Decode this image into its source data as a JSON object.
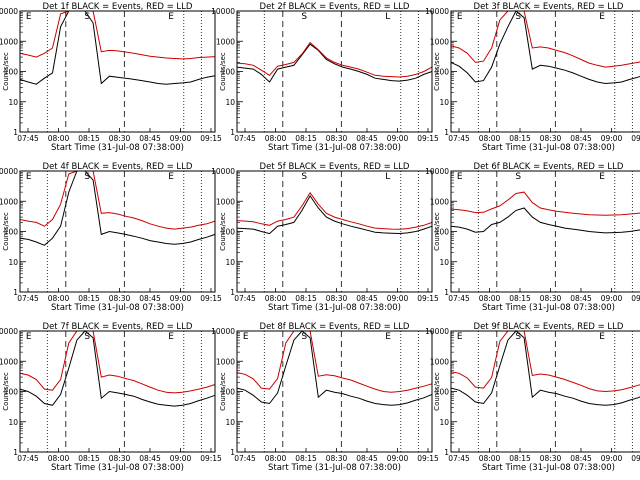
{
  "chart_data": [
    {
      "type": "line",
      "title": "Det 1f BLACK = Events, RED = LLD",
      "xlabel": "Start Time (31-Jul-08 07:38:00)",
      "ylabel": "Counts/sec",
      "x_ticks": [
        "07:45",
        "08:00",
        "08:15",
        "08:30",
        "08:45",
        "09:00",
        "09:15"
      ],
      "y_ticks": [
        "1",
        "10",
        "100",
        "1000",
        "10000"
      ],
      "ylim": [
        1,
        10000
      ],
      "y_scale": "log",
      "markers": [
        "E",
        "S",
        "E"
      ],
      "series": [
        {
          "color": "#000000",
          "values": [
            55,
            45,
            38,
            60,
            90,
            3000,
            10000,
            10000,
            10000,
            4000,
            40,
            70,
            65,
            60,
            55,
            50,
            45,
            40,
            38,
            40,
            42,
            45,
            55,
            65,
            72
          ]
        },
        {
          "color": "#cc0000",
          "values": [
            400,
            350,
            300,
            400,
            600,
            8000,
            10000,
            10000,
            10000,
            10000,
            450,
            500,
            480,
            440,
            400,
            360,
            320,
            300,
            280,
            270,
            260,
            270,
            290,
            300,
            310
          ]
        }
      ]
    },
    {
      "type": "line",
      "title": "Det 2f BLACK = Events, RED = LLD",
      "xlabel": "Start Time (31-Jul-08 07:38:00)",
      "ylabel": "Counts/sec",
      "x_ticks": [
        "07:45",
        "08:00",
        "08:15",
        "08:30",
        "08:45",
        "09:00",
        "09:15"
      ],
      "y_ticks": [
        "1",
        "10",
        "100",
        "1000",
        "10000"
      ],
      "ylim": [
        1,
        10000
      ],
      "y_scale": "log",
      "markers": [
        "S",
        "L"
      ],
      "series": [
        {
          "color": "#000000",
          "values": [
            140,
            130,
            120,
            80,
            45,
            120,
            140,
            160,
            350,
            800,
            500,
            250,
            180,
            140,
            120,
            100,
            80,
            60,
            55,
            50,
            48,
            52,
            60,
            80,
            100
          ]
        },
        {
          "color": "#cc0000",
          "values": [
            190,
            180,
            160,
            110,
            75,
            150,
            170,
            200,
            380,
            900,
            520,
            280,
            200,
            160,
            140,
            120,
            95,
            75,
            70,
            68,
            66,
            70,
            80,
            100,
            140
          ]
        }
      ]
    },
    {
      "type": "line",
      "title": "Det 3f BLACK = Events, RED = LLD",
      "xlabel": "Start Time (31-Jul-08 07:38:00)",
      "ylabel": "Counts/sec",
      "x_ticks": [
        "07:45",
        "08:00",
        "08:15",
        "08:30",
        "08:45",
        "09:00",
        "09:15"
      ],
      "y_ticks": [
        "1",
        "10",
        "100",
        "1000",
        "10000"
      ],
      "ylim": [
        1,
        10000
      ],
      "y_scale": "log",
      "markers": [
        "E",
        "S",
        "E"
      ],
      "series": [
        {
          "color": "#000000",
          "values": [
            200,
            150,
            90,
            45,
            50,
            140,
            800,
            3000,
            10000,
            6000,
            120,
            160,
            150,
            130,
            110,
            90,
            70,
            55,
            45,
            40,
            42,
            45,
            55,
            65,
            80
          ]
        },
        {
          "color": "#cc0000",
          "values": [
            700,
            600,
            400,
            200,
            220,
            600,
            5000,
            10000,
            10000,
            10000,
            600,
            650,
            600,
            500,
            420,
            330,
            250,
            190,
            160,
            140,
            150,
            160,
            180,
            200,
            230
          ]
        }
      ]
    },
    {
      "type": "line",
      "title": "Det 4f BLACK = Events, RED = LLD",
      "xlabel": "Start Time (31-Jul-08 07:38:00)",
      "ylabel": "Counts/sec",
      "x_ticks": [
        "07:45",
        "08:00",
        "08:15",
        "08:30",
        "08:45",
        "09:00",
        "09:15"
      ],
      "y_ticks": [
        "1",
        "10",
        "100",
        "1000",
        "10000"
      ],
      "ylim": [
        1,
        10000
      ],
      "y_scale": "log",
      "markers": [
        "E",
        "S",
        "E"
      ],
      "series": [
        {
          "color": "#000000",
          "values": [
            60,
            55,
            45,
            35,
            60,
            150,
            2000,
            10000,
            10000,
            5000,
            80,
            100,
            90,
            80,
            70,
            60,
            50,
            45,
            40,
            38,
            40,
            45,
            55,
            65,
            80
          ]
        },
        {
          "color": "#cc0000",
          "values": [
            250,
            220,
            200,
            150,
            250,
            800,
            8000,
            10000,
            10000,
            10000,
            400,
            420,
            380,
            320,
            280,
            230,
            180,
            150,
            130,
            120,
            130,
            140,
            160,
            180,
            220
          ]
        }
      ]
    },
    {
      "type": "line",
      "title": "Det 5f BLACK = Events, RED = LLD",
      "xlabel": "Start Time (31-Jul-08 07:38:00)",
      "ylabel": "Counts/sec",
      "x_ticks": [
        "07:45",
        "08:00",
        "08:15",
        "08:30",
        "08:45",
        "09:00",
        "09:15"
      ],
      "y_ticks": [
        "1",
        "10",
        "100",
        "1000",
        "10000"
      ],
      "ylim": [
        1,
        10000
      ],
      "y_scale": "log",
      "markers": [
        "S",
        "L"
      ],
      "series": [
        {
          "color": "#000000",
          "values": [
            130,
            125,
            120,
            100,
            85,
            150,
            170,
            200,
            500,
            1500,
            600,
            300,
            220,
            180,
            150,
            130,
            110,
            95,
            90,
            88,
            86,
            90,
            100,
            120,
            150
          ]
        },
        {
          "color": "#cc0000",
          "values": [
            230,
            220,
            210,
            180,
            160,
            220,
            250,
            300,
            700,
            1900,
            800,
            400,
            300,
            250,
            210,
            180,
            150,
            130,
            125,
            120,
            118,
            125,
            140,
            160,
            200
          ]
        }
      ]
    },
    {
      "type": "line",
      "title": "Det 6f BLACK = Events, RED = LLD",
      "xlabel": "Start Time (31-Jul-08 07:38:00)",
      "ylabel": "Counts/sec",
      "x_ticks": [
        "07:45",
        "08:00",
        "08:15",
        "08:30",
        "08:45",
        "09:00",
        "09:15"
      ],
      "y_ticks": [
        "1",
        "10",
        "100",
        "1000",
        "10000"
      ],
      "ylim": [
        1,
        10000
      ],
      "y_scale": "log",
      "markers": [
        "E",
        "S",
        "E"
      ],
      "series": [
        {
          "color": "#000000",
          "values": [
            150,
            140,
            120,
            95,
            100,
            170,
            200,
            300,
            500,
            600,
            300,
            200,
            170,
            150,
            130,
            120,
            110,
            100,
            95,
            90,
            92,
            95,
            100,
            110,
            120
          ]
        },
        {
          "color": "#cc0000",
          "values": [
            550,
            520,
            480,
            420,
            430,
            560,
            700,
            1100,
            1800,
            2000,
            900,
            600,
            520,
            470,
            430,
            400,
            380,
            360,
            350,
            345,
            350,
            360,
            380,
            400,
            420
          ]
        }
      ]
    },
    {
      "type": "line",
      "title": "Det 7f BLACK = Events, RED = LLD",
      "xlabel": "Start Time (31-Jul-08 07:38:00)",
      "ylabel": "Counts/sec",
      "x_ticks": [
        "07:45",
        "08:00",
        "08:15",
        "08:30",
        "08:45",
        "09:00",
        "09:15"
      ],
      "y_ticks": [
        "1",
        "10",
        "100",
        "1000",
        "10000"
      ],
      "ylim": [
        1,
        10000
      ],
      "y_scale": "log",
      "markers": [
        "E",
        "S",
        "E"
      ],
      "series": [
        {
          "color": "#000000",
          "values": [
            120,
            100,
            70,
            40,
            35,
            80,
            600,
            5000,
            10000,
            6000,
            60,
            100,
            90,
            80,
            70,
            55,
            45,
            38,
            35,
            33,
            35,
            40,
            50,
            60,
            75
          ]
        },
        {
          "color": "#cc0000",
          "values": [
            400,
            350,
            250,
            120,
            110,
            250,
            4000,
            10000,
            10000,
            10000,
            300,
            350,
            320,
            270,
            230,
            180,
            140,
            110,
            95,
            90,
            95,
            105,
            120,
            140,
            170
          ]
        }
      ]
    },
    {
      "type": "line",
      "title": "Det 8f BLACK = Events, RED = LLD",
      "xlabel": "Start Time (31-Jul-08 07:38:00)",
      "ylabel": "Counts/sec",
      "x_ticks": [
        "07:45",
        "08:00",
        "08:15",
        "08:30",
        "08:45",
        "09:00",
        "09:15"
      ],
      "y_ticks": [
        "1",
        "10",
        "100",
        "1000",
        "10000"
      ],
      "ylim": [
        1,
        10000
      ],
      "y_scale": "log",
      "markers": [
        "E",
        "S",
        "E"
      ],
      "series": [
        {
          "color": "#000000",
          "values": [
            130,
            110,
            75,
            45,
            40,
            90,
            700,
            5000,
            10000,
            6000,
            65,
            110,
            95,
            85,
            70,
            60,
            48,
            40,
            37,
            35,
            37,
            42,
            52,
            62,
            80
          ]
        },
        {
          "color": "#cc0000",
          "values": [
            420,
            370,
            260,
            130,
            120,
            270,
            4000,
            10000,
            10000,
            10000,
            320,
            360,
            330,
            280,
            240,
            190,
            150,
            120,
            100,
            95,
            100,
            110,
            130,
            150,
            180
          ]
        }
      ]
    },
    {
      "type": "line",
      "title": "Det 9f BLACK = Events, RED = LLD",
      "xlabel": "Start Time (31-Jul-08 07:38:00)",
      "ylabel": "Counts/sec",
      "x_ticks": [
        "07:45",
        "08:00",
        "08:15",
        "08:30",
        "08:45",
        "09:00",
        "09:15"
      ],
      "y_ticks": [
        "1",
        "10",
        "100",
        "1000",
        "10000"
      ],
      "ylim": [
        1,
        10000
      ],
      "y_scale": "log",
      "markers": [
        "E",
        "S",
        "E"
      ],
      "series": [
        {
          "color": "#000000",
          "values": [
            130,
            110,
            75,
            45,
            40,
            90,
            700,
            5000,
            10000,
            6000,
            65,
            110,
            95,
            85,
            70,
            60,
            48,
            40,
            37,
            35,
            37,
            42,
            52,
            62,
            80
          ]
        },
        {
          "color": "#cc0000",
          "values": [
            450,
            400,
            280,
            140,
            130,
            290,
            4500,
            10000,
            10000,
            10000,
            340,
            380,
            350,
            300,
            250,
            200,
            160,
            125,
            105,
            100,
            105,
            115,
            135,
            160,
            190
          ]
        }
      ]
    }
  ]
}
